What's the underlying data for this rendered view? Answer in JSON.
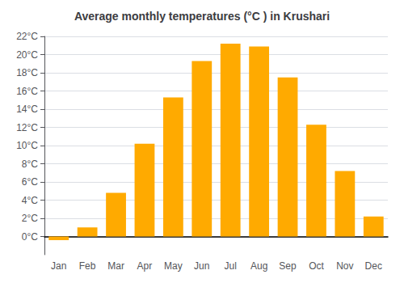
{
  "chart_data": {
    "type": "bar",
    "title": "Average monthly temperatures (°C ) in Krushari",
    "categories": [
      "Jan",
      "Feb",
      "Mar",
      "Apr",
      "May",
      "Jun",
      "Jul",
      "Aug",
      "Sep",
      "Oct",
      "Nov",
      "Dec"
    ],
    "values": [
      -0.4,
      1.0,
      4.8,
      10.2,
      15.3,
      19.3,
      21.2,
      20.9,
      17.5,
      12.3,
      7.2,
      2.2
    ],
    "color": "#FFAA00",
    "ylim": [
      -2,
      22
    ],
    "yticks": [
      {
        "value": 0,
        "label": "0°C"
      },
      {
        "value": 2,
        "label": "2°C"
      },
      {
        "value": 4,
        "label": "4°C"
      },
      {
        "value": 6,
        "label": "6°C"
      },
      {
        "value": 8,
        "label": "8°C"
      },
      {
        "value": 10,
        "label": "10°C"
      },
      {
        "value": 12,
        "label": "12°C"
      },
      {
        "value": 14,
        "label": "14°C"
      },
      {
        "value": 16,
        "label": "16°C"
      },
      {
        "value": 18,
        "label": "18°C"
      },
      {
        "value": 20,
        "label": "20°C"
      },
      {
        "value": 22,
        "label": "22°C"
      }
    ],
    "grid": true
  }
}
